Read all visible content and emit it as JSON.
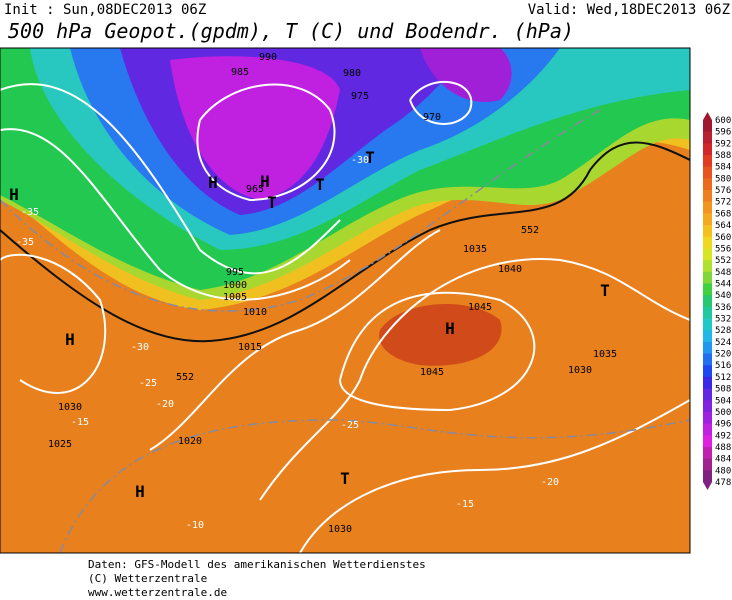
{
  "header": {
    "init": "Init : Sun,08DEC2013 06Z",
    "valid": "Valid: Wed,18DEC2013 06Z",
    "title": "500 hPa Geopot.(gpdm), T (C) und Bodendr. (hPa)"
  },
  "colorbar": {
    "labels": [
      "600",
      "596",
      "592",
      "588",
      "584",
      "580",
      "576",
      "572",
      "568",
      "564",
      "560",
      "556",
      "552",
      "548",
      "544",
      "540",
      "536",
      "532",
      "528",
      "524",
      "520",
      "516",
      "512",
      "508",
      "504",
      "500",
      "496",
      "492",
      "488",
      "484",
      "480",
      "478"
    ]
  },
  "map": {
    "labels": [
      "H",
      "H",
      "H",
      "H",
      "H",
      "H",
      "T",
      "T",
      "T",
      "T",
      "T",
      "1030",
      "1025",
      "1020",
      "1015",
      "1010",
      "1005",
      "1000",
      "995",
      "990",
      "985",
      "980",
      "975",
      "970",
      "965",
      "1035",
      "1040",
      "1045",
      "1045",
      "1030",
      "1035",
      "1030",
      "-35",
      "-30",
      "-25",
      "-20",
      "-15",
      "-10",
      "552",
      "552",
      "-20",
      "-25",
      "-15",
      "-30",
      "-35"
    ]
  },
  "footer": {
    "lines": [
      "Daten: GFS-Modell des amerikanischen Wetterdienstes",
      "(C) Wetterzentrale",
      "www.wetterzentrale.de"
    ]
  }
}
